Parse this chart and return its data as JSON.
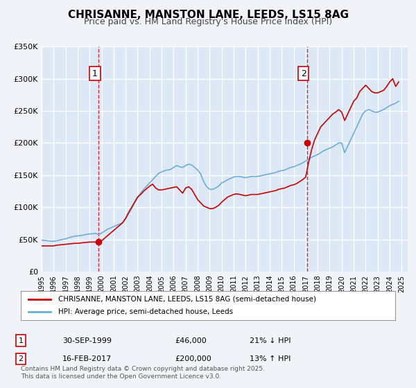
{
  "title": "CHRISANNE, MANSTON LANE, LEEDS, LS15 8AG",
  "subtitle": "Price paid vs. HM Land Registry's House Price Index (HPI)",
  "background_color": "#f0f4f8",
  "plot_bg_color": "#dce8f5",
  "grid_color": "#ffffff",
  "red_color": "#cc0000",
  "blue_color": "#6baed6",
  "ylim": [
    0,
    350000
  ],
  "yticks": [
    0,
    50000,
    100000,
    150000,
    200000,
    250000,
    300000,
    350000
  ],
  "ytick_labels": [
    "£0",
    "£50K",
    "£100K",
    "£150K",
    "£200K",
    "£250K",
    "£300K",
    "£350K"
  ],
  "xlim_start": 1995.0,
  "xlim_end": 2025.5,
  "xtick_years": [
    1995,
    1996,
    1997,
    1998,
    1999,
    2000,
    2001,
    2002,
    2003,
    2004,
    2005,
    2006,
    2007,
    2008,
    2009,
    2010,
    2011,
    2012,
    2013,
    2014,
    2015,
    2016,
    2017,
    2018,
    2019,
    2020,
    2021,
    2022,
    2023,
    2024,
    2025
  ],
  "vline1_x": 1999.75,
  "vline2_x": 2017.12,
  "marker1_x": 1999.75,
  "marker1_y": 46000,
  "marker2_x": 2017.12,
  "marker2_y": 200000,
  "legend_label1": "CHRISANNE, MANSTON LANE, LEEDS, LS15 8AG (semi-detached house)",
  "legend_label2": "HPI: Average price, semi-detached house, Leeds",
  "table_row1": [
    "1",
    "30-SEP-1999",
    "£46,000",
    "21% ↓ HPI"
  ],
  "table_row2": [
    "2",
    "16-FEB-2017",
    "£200,000",
    "13% ↑ HPI"
  ],
  "footnote": "Contains HM Land Registry data © Crown copyright and database right 2025.\nThis data is licensed under the Open Government Licence v3.0.",
  "hpi_data": {
    "x": [
      1995.0,
      1995.25,
      1995.5,
      1995.75,
      1996.0,
      1996.25,
      1996.5,
      1996.75,
      1997.0,
      1997.25,
      1997.5,
      1997.75,
      1998.0,
      1998.25,
      1998.5,
      1998.75,
      1999.0,
      1999.25,
      1999.5,
      1999.75,
      2000.0,
      2000.25,
      2000.5,
      2000.75,
      2001.0,
      2001.25,
      2001.5,
      2001.75,
      2002.0,
      2002.25,
      2002.5,
      2002.75,
      2003.0,
      2003.25,
      2003.5,
      2003.75,
      2004.0,
      2004.25,
      2004.5,
      2004.75,
      2005.0,
      2005.25,
      2005.5,
      2005.75,
      2006.0,
      2006.25,
      2006.5,
      2006.75,
      2007.0,
      2007.25,
      2007.5,
      2007.75,
      2008.0,
      2008.25,
      2008.5,
      2008.75,
      2009.0,
      2009.25,
      2009.5,
      2009.75,
      2010.0,
      2010.25,
      2010.5,
      2010.75,
      2011.0,
      2011.25,
      2011.5,
      2011.75,
      2012.0,
      2012.25,
      2012.5,
      2012.75,
      2013.0,
      2013.25,
      2013.5,
      2013.75,
      2014.0,
      2014.25,
      2014.5,
      2014.75,
      2015.0,
      2015.25,
      2015.5,
      2015.75,
      2016.0,
      2016.25,
      2016.5,
      2016.75,
      2017.0,
      2017.25,
      2017.5,
      2017.75,
      2018.0,
      2018.25,
      2018.5,
      2018.75,
      2019.0,
      2019.25,
      2019.5,
      2019.75,
      2020.0,
      2020.25,
      2020.5,
      2020.75,
      2021.0,
      2021.25,
      2021.5,
      2021.75,
      2022.0,
      2022.25,
      2022.5,
      2022.75,
      2023.0,
      2023.25,
      2023.5,
      2023.75,
      2024.0,
      2024.25,
      2024.5,
      2024.75
    ],
    "y": [
      49000,
      48500,
      48000,
      47500,
      47000,
      48000,
      49000,
      50000,
      51000,
      52500,
      54000,
      55000,
      55500,
      56000,
      57000,
      58000,
      58500,
      59000,
      59500,
      57500,
      60000,
      63000,
      66000,
      68000,
      70000,
      72000,
      74000,
      76000,
      82000,
      90000,
      98000,
      107000,
      115000,
      122000,
      128000,
      133000,
      138000,
      143000,
      148000,
      153000,
      155000,
      157000,
      158000,
      159000,
      162000,
      165000,
      163000,
      162000,
      165000,
      167000,
      166000,
      162000,
      158000,
      152000,
      140000,
      132000,
      128000,
      128000,
      130000,
      133000,
      138000,
      140000,
      143000,
      145000,
      147000,
      148000,
      148000,
      147000,
      146000,
      147000,
      148000,
      148000,
      148000,
      149000,
      150000,
      151000,
      152000,
      153000,
      154000,
      156000,
      157000,
      158000,
      160000,
      162000,
      163000,
      165000,
      167000,
      169000,
      172000,
      175000,
      178000,
      180000,
      182000,
      185000,
      188000,
      190000,
      192000,
      194000,
      197000,
      200000,
      200000,
      185000,
      195000,
      205000,
      215000,
      225000,
      235000,
      245000,
      250000,
      252000,
      250000,
      248000,
      248000,
      250000,
      252000,
      255000,
      258000,
      260000,
      262000,
      265000
    ]
  },
  "red_data": {
    "x": [
      1995.0,
      1995.25,
      1995.5,
      1995.75,
      1996.0,
      1996.25,
      1996.5,
      1996.75,
      1997.0,
      1997.25,
      1997.5,
      1997.75,
      1998.0,
      1998.25,
      1998.5,
      1998.75,
      1999.0,
      1999.25,
      1999.5,
      1999.75,
      2000.0,
      2000.25,
      2000.5,
      2000.75,
      2001.0,
      2001.25,
      2001.5,
      2001.75,
      2002.0,
      2002.25,
      2002.5,
      2002.75,
      2003.0,
      2003.25,
      2003.5,
      2003.75,
      2004.0,
      2004.25,
      2004.5,
      2004.75,
      2005.0,
      2005.25,
      2005.5,
      2005.75,
      2006.0,
      2006.25,
      2006.5,
      2006.75,
      2007.0,
      2007.25,
      2007.5,
      2007.75,
      2008.0,
      2008.25,
      2008.5,
      2008.75,
      2009.0,
      2009.25,
      2009.5,
      2009.75,
      2010.0,
      2010.25,
      2010.5,
      2010.75,
      2011.0,
      2011.25,
      2011.5,
      2011.75,
      2012.0,
      2012.25,
      2012.5,
      2012.75,
      2013.0,
      2013.25,
      2013.5,
      2013.75,
      2014.0,
      2014.25,
      2014.5,
      2014.75,
      2015.0,
      2015.25,
      2015.5,
      2015.75,
      2016.0,
      2016.25,
      2016.5,
      2016.75,
      2017.0,
      2017.25,
      2017.5,
      2017.75,
      2018.0,
      2018.25,
      2018.5,
      2018.75,
      2019.0,
      2019.25,
      2019.5,
      2019.75,
      2020.0,
      2020.25,
      2020.5,
      2020.75,
      2021.0,
      2021.25,
      2021.5,
      2021.75,
      2022.0,
      2022.25,
      2022.5,
      2022.75,
      2023.0,
      2023.25,
      2023.5,
      2023.75,
      2024.0,
      2024.25,
      2024.5,
      2024.75
    ],
    "y": [
      40000,
      40000,
      40000,
      40000,
      40000,
      41000,
      41500,
      42000,
      42500,
      43000,
      43500,
      44000,
      44000,
      44500,
      45000,
      45500,
      46000,
      46000,
      46000,
      46000,
      48000,
      52000,
      56000,
      60000,
      64000,
      68000,
      72000,
      76000,
      83000,
      92000,
      100000,
      108000,
      116000,
      120000,
      125000,
      129000,
      133000,
      136000,
      130000,
      127000,
      127000,
      128000,
      129000,
      130000,
      131000,
      132000,
      127000,
      122000,
      130000,
      132000,
      128000,
      120000,
      112000,
      107000,
      102000,
      100000,
      98000,
      98000,
      100000,
      103000,
      108000,
      112000,
      116000,
      118000,
      120000,
      121000,
      120000,
      119000,
      118000,
      119000,
      120000,
      120000,
      120000,
      121000,
      122000,
      123000,
      124000,
      125000,
      126000,
      128000,
      129000,
      130000,
      132000,
      134000,
      135000,
      137000,
      140000,
      143000,
      147000,
      170000,
      190000,
      205000,
      215000,
      225000,
      230000,
      235000,
      240000,
      245000,
      248000,
      252000,
      248000,
      235000,
      245000,
      255000,
      265000,
      270000,
      280000,
      285000,
      290000,
      285000,
      280000,
      278000,
      278000,
      280000,
      282000,
      288000,
      295000,
      300000,
      288000,
      295000
    ]
  }
}
